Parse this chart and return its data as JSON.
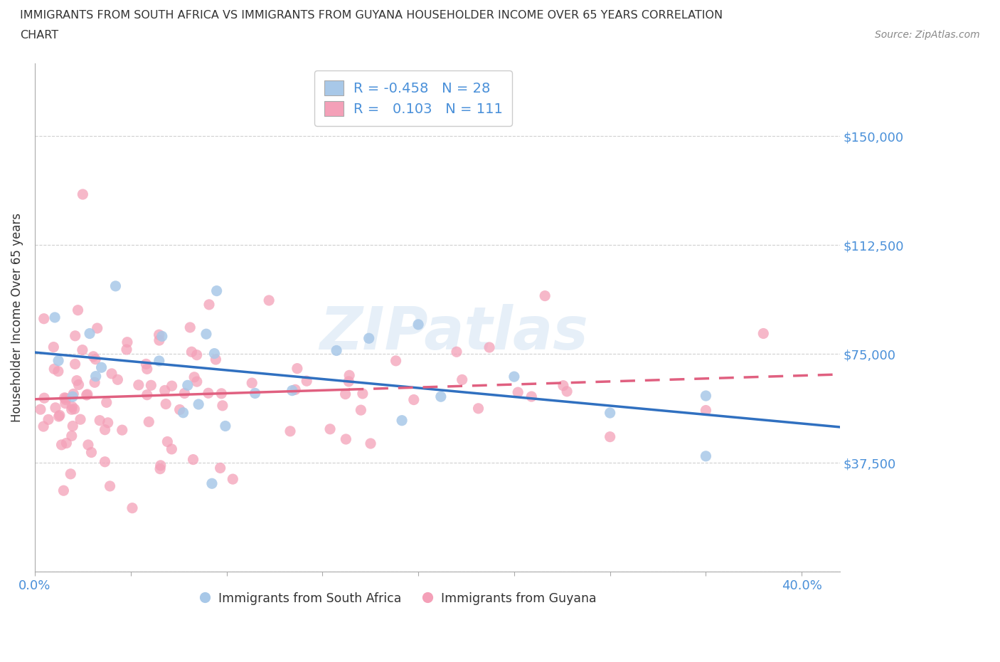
{
  "title_line1": "IMMIGRANTS FROM SOUTH AFRICA VS IMMIGRANTS FROM GUYANA HOUSEHOLDER INCOME OVER 65 YEARS CORRELATION",
  "title_line2": "CHART",
  "source_text": "Source: ZipAtlas.com",
  "ylabel": "Householder Income Over 65 years",
  "xlim": [
    0.0,
    0.42
  ],
  "ylim": [
    0,
    175000
  ],
  "yticks": [
    0,
    37500,
    75000,
    112500,
    150000
  ],
  "ytick_labels": [
    "",
    "$37,500",
    "$75,000",
    "$112,500",
    "$150,000"
  ],
  "xticks": [
    0.0,
    0.05,
    0.1,
    0.15,
    0.2,
    0.25,
    0.3,
    0.35,
    0.4
  ],
  "xtick_labels_show": [
    "0.0%",
    "",
    "",
    "",
    "",
    "",
    "",
    "",
    "40.0%"
  ],
  "south_africa_color": "#a8c8e8",
  "guyana_color": "#f4a0b8",
  "south_africa_line_color": "#3070c0",
  "guyana_line_color": "#e06080",
  "R_south_africa": -0.458,
  "N_south_africa": 28,
  "R_guyana": 0.103,
  "N_guyana": 111,
  "watermark_text": "ZIPatlas",
  "background_color": "#ffffff",
  "grid_color": "#d0d0d0",
  "tick_label_color": "#4a90d9",
  "sa_seed": 10,
  "g_seed": 7
}
